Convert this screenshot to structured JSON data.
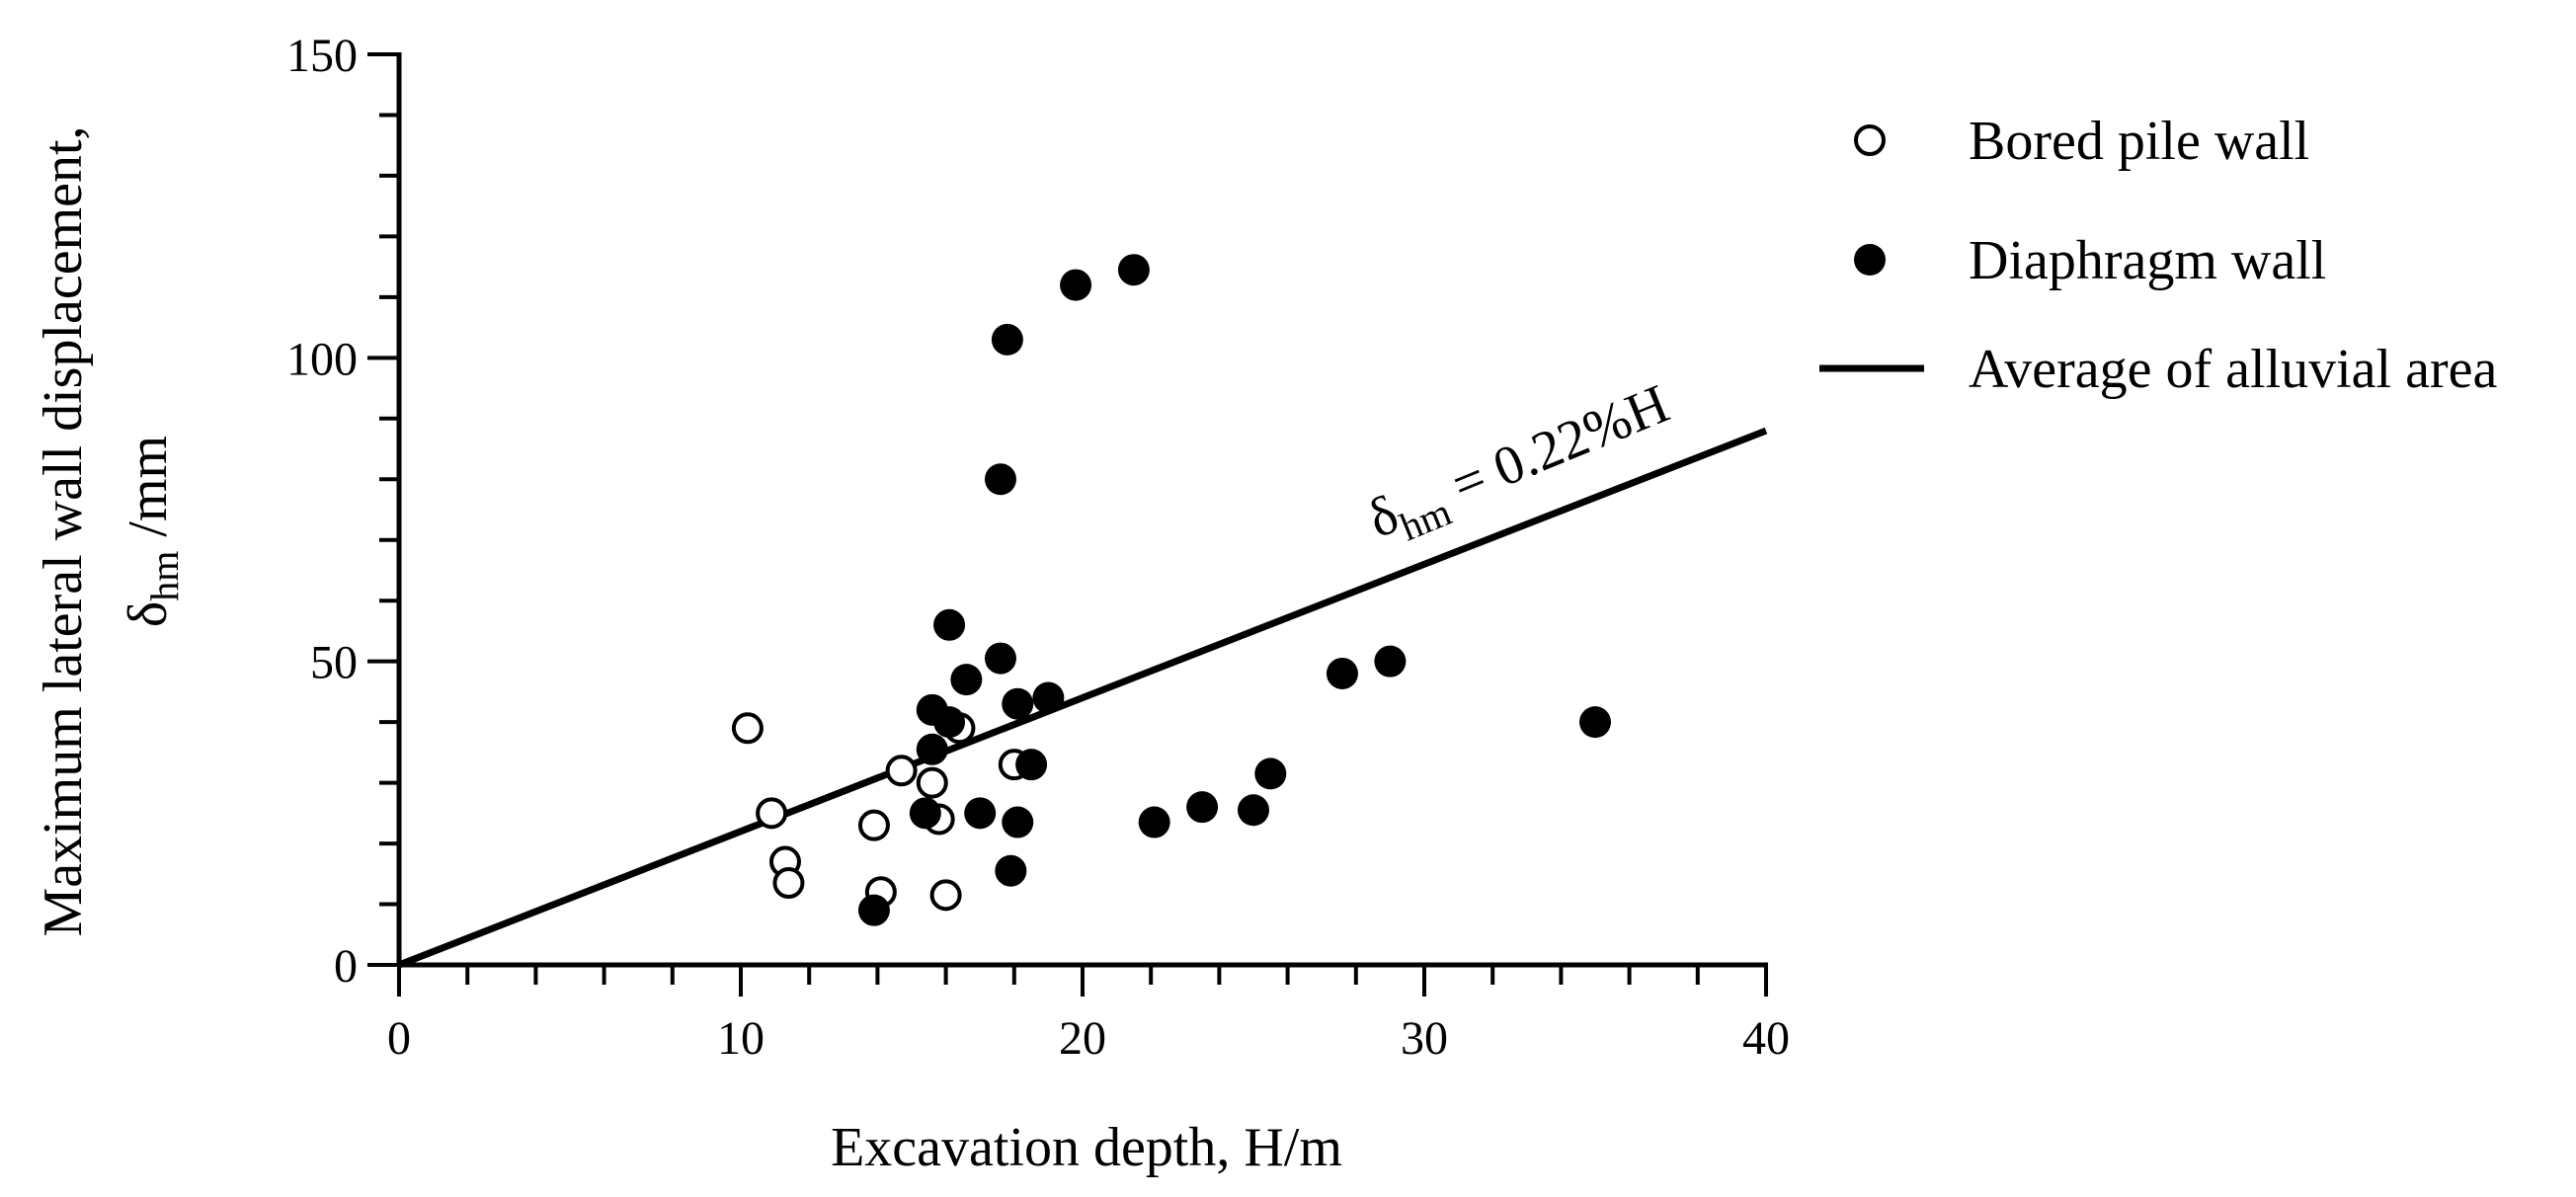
{
  "chart_data": {
    "type": "scatter",
    "xlabel": "Excavation depth,  H/m",
    "ylabel_line1": "Maximum lateral wall displacement,",
    "ylabel_symbol": "δ",
    "ylabel_sub": "hm",
    "ylabel_unit": " /mm",
    "xlim": [
      0,
      40
    ],
    "ylim": [
      0,
      150
    ],
    "x_ticks": [
      "0",
      "10",
      "20",
      "30",
      "40"
    ],
    "y_ticks": [
      "0",
      "50",
      "100",
      "150"
    ],
    "grid": false,
    "legend_position": "top-right, outside plot",
    "series": [
      {
        "name": "Bored pile wall",
        "marker": "open-circle",
        "points": [
          [
            10.2,
            39
          ],
          [
            10.9,
            25
          ],
          [
            11.3,
            17
          ],
          [
            11.4,
            13.5
          ],
          [
            13.9,
            23
          ],
          [
            14.1,
            12
          ],
          [
            14.7,
            32
          ],
          [
            15.6,
            30
          ],
          [
            15.8,
            24
          ],
          [
            16.0,
            11.5
          ],
          [
            16.4,
            39
          ],
          [
            18.0,
            33
          ]
        ]
      },
      {
        "name": "Diaphragm wall",
        "marker": "filled-circle",
        "points": [
          [
            21.5,
            114.5
          ],
          [
            19.8,
            112
          ],
          [
            17.8,
            103
          ],
          [
            17.6,
            80
          ],
          [
            16.1,
            56
          ],
          [
            17.6,
            50.5
          ],
          [
            16.6,
            47
          ],
          [
            19.0,
            44
          ],
          [
            18.1,
            43
          ],
          [
            15.6,
            42
          ],
          [
            16.1,
            40
          ],
          [
            15.6,
            35.5
          ],
          [
            18.5,
            33
          ],
          [
            15.4,
            25
          ],
          [
            17.0,
            25
          ],
          [
            18.1,
            23.5
          ],
          [
            17.9,
            15.5
          ],
          [
            13.9,
            9
          ],
          [
            22.1,
            23.5
          ],
          [
            23.5,
            26
          ],
          [
            25.0,
            25.5
          ],
          [
            25.5,
            31.5
          ],
          [
            27.6,
            48
          ],
          [
            29.0,
            50
          ],
          [
            35.0,
            40
          ]
        ]
      },
      {
        "name": "Average of alluvial area",
        "marker": "line",
        "slope_percent": 0.22,
        "x": [
          0,
          40
        ],
        "y": [
          0,
          88
        ]
      }
    ],
    "annotations": [
      {
        "symbol": "δ",
        "sub": "hm",
        "text": " = 0.22%H"
      }
    ]
  }
}
